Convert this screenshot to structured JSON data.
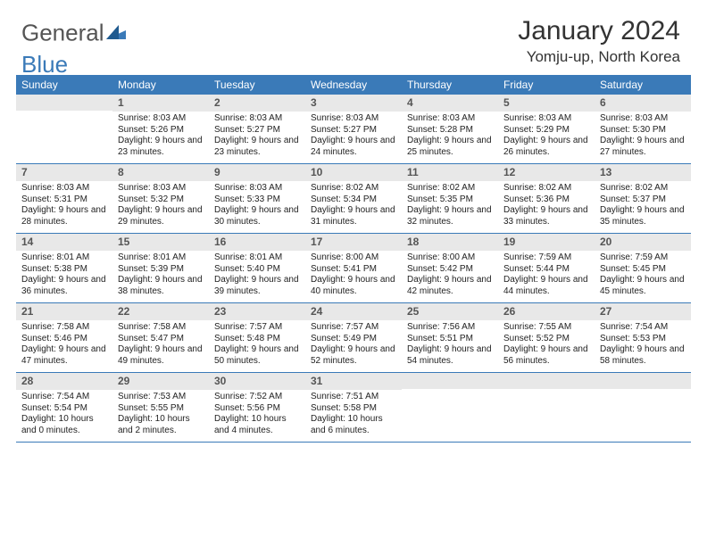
{
  "logo": {
    "part1": "General",
    "part2": "Blue"
  },
  "header": {
    "title": "January 2024",
    "location": "Yomju-up, North Korea"
  },
  "colors": {
    "accent": "#3a7ab8",
    "daynum_bg": "#e8e8e8",
    "text": "#222222",
    "background": "#ffffff"
  },
  "day_labels": [
    "Sunday",
    "Monday",
    "Tuesday",
    "Wednesday",
    "Thursday",
    "Friday",
    "Saturday"
  ],
  "weeks": [
    [
      {
        "num": "",
        "sunrise": "",
        "sunset": "",
        "daylight": ""
      },
      {
        "num": "1",
        "sunrise": "Sunrise: 8:03 AM",
        "sunset": "Sunset: 5:26 PM",
        "daylight": "Daylight: 9 hours and 23 minutes."
      },
      {
        "num": "2",
        "sunrise": "Sunrise: 8:03 AM",
        "sunset": "Sunset: 5:27 PM",
        "daylight": "Daylight: 9 hours and 23 minutes."
      },
      {
        "num": "3",
        "sunrise": "Sunrise: 8:03 AM",
        "sunset": "Sunset: 5:27 PM",
        "daylight": "Daylight: 9 hours and 24 minutes."
      },
      {
        "num": "4",
        "sunrise": "Sunrise: 8:03 AM",
        "sunset": "Sunset: 5:28 PM",
        "daylight": "Daylight: 9 hours and 25 minutes."
      },
      {
        "num": "5",
        "sunrise": "Sunrise: 8:03 AM",
        "sunset": "Sunset: 5:29 PM",
        "daylight": "Daylight: 9 hours and 26 minutes."
      },
      {
        "num": "6",
        "sunrise": "Sunrise: 8:03 AM",
        "sunset": "Sunset: 5:30 PM",
        "daylight": "Daylight: 9 hours and 27 minutes."
      }
    ],
    [
      {
        "num": "7",
        "sunrise": "Sunrise: 8:03 AM",
        "sunset": "Sunset: 5:31 PM",
        "daylight": "Daylight: 9 hours and 28 minutes."
      },
      {
        "num": "8",
        "sunrise": "Sunrise: 8:03 AM",
        "sunset": "Sunset: 5:32 PM",
        "daylight": "Daylight: 9 hours and 29 minutes."
      },
      {
        "num": "9",
        "sunrise": "Sunrise: 8:03 AM",
        "sunset": "Sunset: 5:33 PM",
        "daylight": "Daylight: 9 hours and 30 minutes."
      },
      {
        "num": "10",
        "sunrise": "Sunrise: 8:02 AM",
        "sunset": "Sunset: 5:34 PM",
        "daylight": "Daylight: 9 hours and 31 minutes."
      },
      {
        "num": "11",
        "sunrise": "Sunrise: 8:02 AM",
        "sunset": "Sunset: 5:35 PM",
        "daylight": "Daylight: 9 hours and 32 minutes."
      },
      {
        "num": "12",
        "sunrise": "Sunrise: 8:02 AM",
        "sunset": "Sunset: 5:36 PM",
        "daylight": "Daylight: 9 hours and 33 minutes."
      },
      {
        "num": "13",
        "sunrise": "Sunrise: 8:02 AM",
        "sunset": "Sunset: 5:37 PM",
        "daylight": "Daylight: 9 hours and 35 minutes."
      }
    ],
    [
      {
        "num": "14",
        "sunrise": "Sunrise: 8:01 AM",
        "sunset": "Sunset: 5:38 PM",
        "daylight": "Daylight: 9 hours and 36 minutes."
      },
      {
        "num": "15",
        "sunrise": "Sunrise: 8:01 AM",
        "sunset": "Sunset: 5:39 PM",
        "daylight": "Daylight: 9 hours and 38 minutes."
      },
      {
        "num": "16",
        "sunrise": "Sunrise: 8:01 AM",
        "sunset": "Sunset: 5:40 PM",
        "daylight": "Daylight: 9 hours and 39 minutes."
      },
      {
        "num": "17",
        "sunrise": "Sunrise: 8:00 AM",
        "sunset": "Sunset: 5:41 PM",
        "daylight": "Daylight: 9 hours and 40 minutes."
      },
      {
        "num": "18",
        "sunrise": "Sunrise: 8:00 AM",
        "sunset": "Sunset: 5:42 PM",
        "daylight": "Daylight: 9 hours and 42 minutes."
      },
      {
        "num": "19",
        "sunrise": "Sunrise: 7:59 AM",
        "sunset": "Sunset: 5:44 PM",
        "daylight": "Daylight: 9 hours and 44 minutes."
      },
      {
        "num": "20",
        "sunrise": "Sunrise: 7:59 AM",
        "sunset": "Sunset: 5:45 PM",
        "daylight": "Daylight: 9 hours and 45 minutes."
      }
    ],
    [
      {
        "num": "21",
        "sunrise": "Sunrise: 7:58 AM",
        "sunset": "Sunset: 5:46 PM",
        "daylight": "Daylight: 9 hours and 47 minutes."
      },
      {
        "num": "22",
        "sunrise": "Sunrise: 7:58 AM",
        "sunset": "Sunset: 5:47 PM",
        "daylight": "Daylight: 9 hours and 49 minutes."
      },
      {
        "num": "23",
        "sunrise": "Sunrise: 7:57 AM",
        "sunset": "Sunset: 5:48 PM",
        "daylight": "Daylight: 9 hours and 50 minutes."
      },
      {
        "num": "24",
        "sunrise": "Sunrise: 7:57 AM",
        "sunset": "Sunset: 5:49 PM",
        "daylight": "Daylight: 9 hours and 52 minutes."
      },
      {
        "num": "25",
        "sunrise": "Sunrise: 7:56 AM",
        "sunset": "Sunset: 5:51 PM",
        "daylight": "Daylight: 9 hours and 54 minutes."
      },
      {
        "num": "26",
        "sunrise": "Sunrise: 7:55 AM",
        "sunset": "Sunset: 5:52 PM",
        "daylight": "Daylight: 9 hours and 56 minutes."
      },
      {
        "num": "27",
        "sunrise": "Sunrise: 7:54 AM",
        "sunset": "Sunset: 5:53 PM",
        "daylight": "Daylight: 9 hours and 58 minutes."
      }
    ],
    [
      {
        "num": "28",
        "sunrise": "Sunrise: 7:54 AM",
        "sunset": "Sunset: 5:54 PM",
        "daylight": "Daylight: 10 hours and 0 minutes."
      },
      {
        "num": "29",
        "sunrise": "Sunrise: 7:53 AM",
        "sunset": "Sunset: 5:55 PM",
        "daylight": "Daylight: 10 hours and 2 minutes."
      },
      {
        "num": "30",
        "sunrise": "Sunrise: 7:52 AM",
        "sunset": "Sunset: 5:56 PM",
        "daylight": "Daylight: 10 hours and 4 minutes."
      },
      {
        "num": "31",
        "sunrise": "Sunrise: 7:51 AM",
        "sunset": "Sunset: 5:58 PM",
        "daylight": "Daylight: 10 hours and 6 minutes."
      },
      {
        "num": "",
        "sunrise": "",
        "sunset": "",
        "daylight": ""
      },
      {
        "num": "",
        "sunrise": "",
        "sunset": "",
        "daylight": ""
      },
      {
        "num": "",
        "sunrise": "",
        "sunset": "",
        "daylight": ""
      }
    ]
  ]
}
